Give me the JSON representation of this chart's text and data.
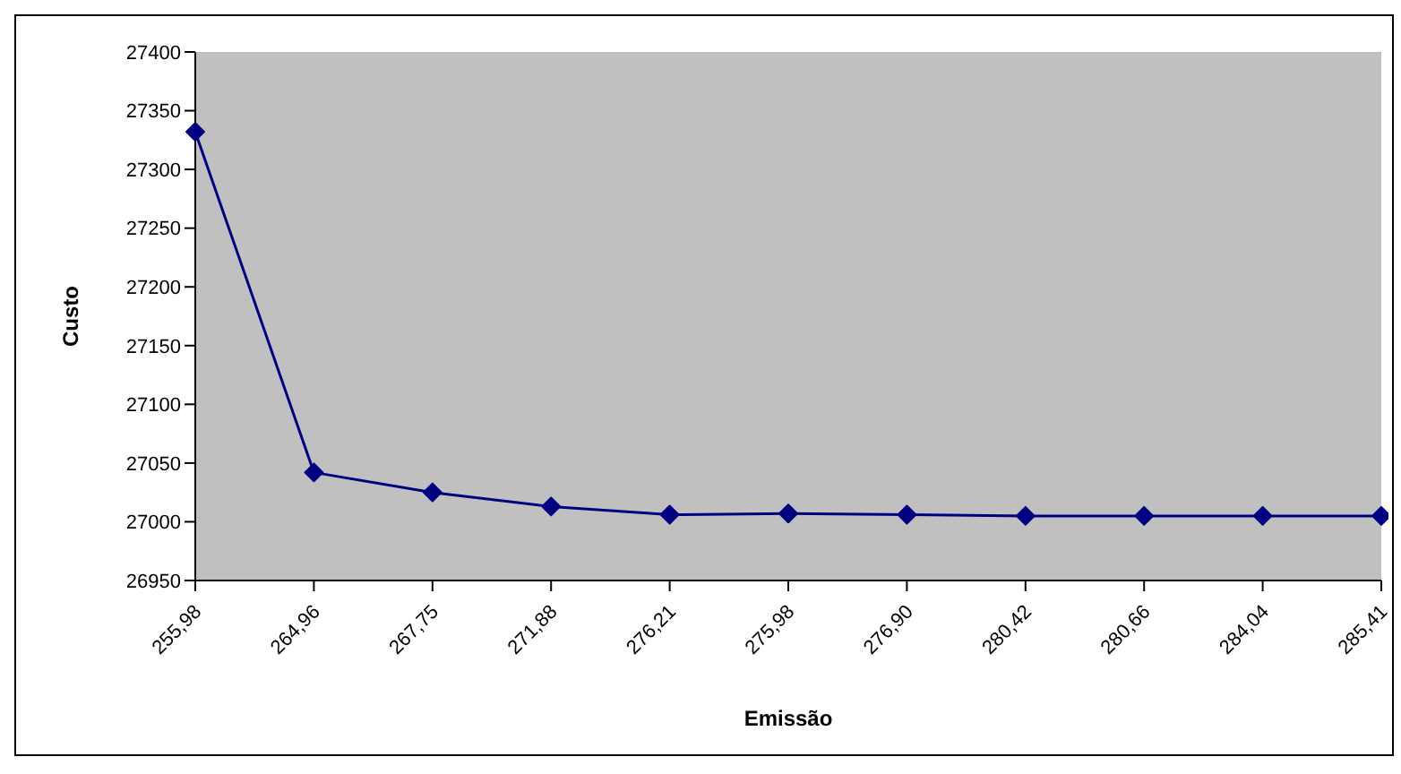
{
  "chart_data": {
    "type": "line",
    "xlabel": "Emissão",
    "ylabel": "Custo",
    "categories": [
      "255,98",
      "264,96",
      "267,75",
      "271,88",
      "276,21",
      "275,98",
      "276,90",
      "280,42",
      "280,66",
      "284,04",
      "285,41"
    ],
    "series": [
      {
        "color": "#000080",
        "values": [
          27332,
          27042,
          27025,
          27013,
          27006,
          27007,
          27006,
          27005,
          27005,
          27005,
          27005
        ]
      }
    ],
    "ylim": [
      26950,
      27400
    ],
    "yticks": [
      26950,
      27000,
      27050,
      27100,
      27150,
      27200,
      27250,
      27300,
      27350,
      27400
    ],
    "grid": false,
    "marker": "diamond",
    "line_style": "solid"
  }
}
